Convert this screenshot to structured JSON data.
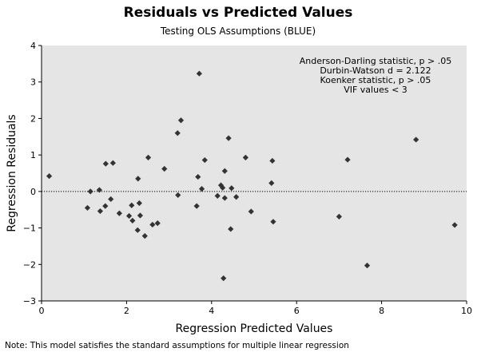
{
  "chart_data": {
    "type": "scatter",
    "title": "Residuals vs Predicted Values",
    "subtitle": "Testing OLS Assumptions (BLUE)",
    "xlabel": "Regression Predicted Values",
    "ylabel": "Regression Residuals",
    "xlim": [
      0,
      10
    ],
    "ylim": [
      -3,
      4
    ],
    "xticks": [
      "0",
      "2",
      "4",
      "6",
      "8",
      "10"
    ],
    "yticks": [
      "−3",
      "−2",
      "−1",
      "0",
      "1",
      "2",
      "3",
      "4"
    ],
    "grid": false,
    "reference_line": {
      "y": 0,
      "style": "dotted"
    },
    "background": "#e5e5e5",
    "marker_color": "#333333",
    "marker": "diamond",
    "annotations": [
      "Anderson-Darling statistic, p > .05",
      "Durbin-Watson d = 2.122",
      "Koenker statistic, p > .05",
      "VIF values < 3"
    ],
    "note": "Note: This model satisfies the standard assumptions for multiple linear regression",
    "points": [
      {
        "x": 0.18,
        "y": 0.42
      },
      {
        "x": 1.08,
        "y": -0.45
      },
      {
        "x": 1.15,
        "y": 0.0
      },
      {
        "x": 1.36,
        "y": 0.04
      },
      {
        "x": 1.38,
        "y": -0.54
      },
      {
        "x": 1.5,
        "y": -0.4
      },
      {
        "x": 1.51,
        "y": 0.76
      },
      {
        "x": 1.63,
        "y": -0.21
      },
      {
        "x": 1.68,
        "y": 0.78
      },
      {
        "x": 1.83,
        "y": -0.6
      },
      {
        "x": 2.06,
        "y": -0.67
      },
      {
        "x": 2.12,
        "y": -0.38
      },
      {
        "x": 2.14,
        "y": -0.8
      },
      {
        "x": 2.26,
        "y": -1.06
      },
      {
        "x": 2.27,
        "y": 0.35
      },
      {
        "x": 2.3,
        "y": -0.32
      },
      {
        "x": 2.32,
        "y": -0.66
      },
      {
        "x": 2.43,
        "y": -1.22
      },
      {
        "x": 2.51,
        "y": 0.93
      },
      {
        "x": 2.61,
        "y": -0.91
      },
      {
        "x": 2.73,
        "y": -0.87
      },
      {
        "x": 2.89,
        "y": 0.62
      },
      {
        "x": 3.2,
        "y": 1.6
      },
      {
        "x": 3.21,
        "y": -0.1
      },
      {
        "x": 3.28,
        "y": 1.95
      },
      {
        "x": 3.65,
        "y": -0.4
      },
      {
        "x": 3.68,
        "y": 0.4
      },
      {
        "x": 3.71,
        "y": 3.23
      },
      {
        "x": 3.77,
        "y": 0.07
      },
      {
        "x": 3.84,
        "y": 0.86
      },
      {
        "x": 4.14,
        "y": -0.12
      },
      {
        "x": 4.22,
        "y": 0.17
      },
      {
        "x": 4.26,
        "y": 0.1
      },
      {
        "x": 4.28,
        "y": -2.38
      },
      {
        "x": 4.31,
        "y": -0.18
      },
      {
        "x": 4.31,
        "y": 0.56
      },
      {
        "x": 4.4,
        "y": 1.46
      },
      {
        "x": 4.45,
        "y": -1.03
      },
      {
        "x": 4.47,
        "y": 0.09
      },
      {
        "x": 4.58,
        "y": -0.15
      },
      {
        "x": 4.8,
        "y": 0.93
      },
      {
        "x": 4.93,
        "y": -0.55
      },
      {
        "x": 5.41,
        "y": 0.23
      },
      {
        "x": 5.43,
        "y": 0.84
      },
      {
        "x": 5.45,
        "y": -0.83
      },
      {
        "x": 7.0,
        "y": -0.69
      },
      {
        "x": 7.2,
        "y": 0.87
      },
      {
        "x": 7.66,
        "y": -2.03
      },
      {
        "x": 8.81,
        "y": 1.42
      },
      {
        "x": 9.72,
        "y": -0.92
      }
    ]
  }
}
